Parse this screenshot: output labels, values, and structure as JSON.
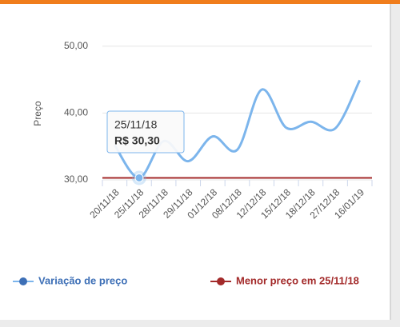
{
  "chart_data": {
    "type": "line",
    "y_label": "Preço",
    "categories": [
      "20/11/18",
      "25/11/18",
      "28/11/18",
      "29/11/18",
      "01/12/18",
      "08/12/18",
      "12/12/18",
      "15/12/18",
      "18/12/18",
      "27/12/18",
      "16/01/19"
    ],
    "series": [
      {
        "name": "Variação de preço",
        "color": "#7cb5ec",
        "values": [
          35.2,
          30.3,
          35.8,
          32.8,
          36.5,
          34.5,
          43.5,
          37.8,
          38.7,
          37.7,
          44.9
        ]
      }
    ],
    "reference_line": {
      "name": "Menor preço em 25/11/18",
      "color": "#a32a2a",
      "value": 30.3
    },
    "ylim": [
      30,
      52
    ],
    "yticks": [
      {
        "value": 30,
        "label": "30,00"
      },
      {
        "value": 40,
        "label": "40,00"
      },
      {
        "value": 50,
        "label": "50,00"
      }
    ],
    "grid": true,
    "tooltip": {
      "date": "25/11/18",
      "value": 30.3,
      "label": "R$ 30,30"
    }
  }
}
